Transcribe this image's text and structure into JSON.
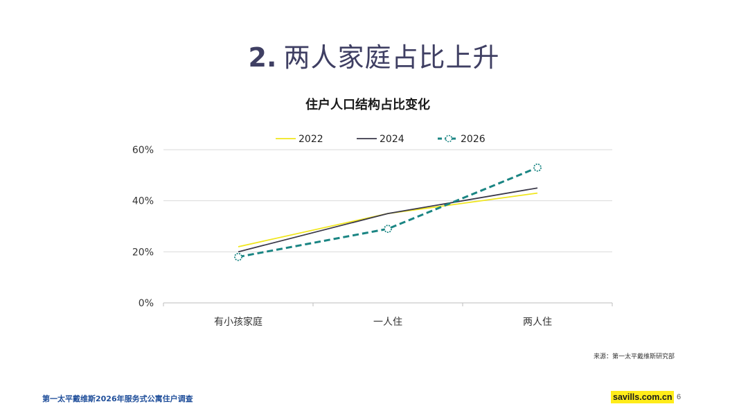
{
  "slide": {
    "title_number": "2.",
    "title_text": "两人家庭占比上升",
    "source": "来源：第一太平戴维斯研究部",
    "footer_left": "第一太平戴维斯2026年服务式公寓住户调查",
    "footer_brand": "savills.com.cn",
    "page_number": "6"
  },
  "chart_data": {
    "type": "line",
    "title": "住户人口结构占比变化",
    "categories": [
      "有小孩家庭",
      "一人住",
      "两人住"
    ],
    "ylim": [
      0,
      60
    ],
    "yticks": [
      0,
      20,
      40,
      60
    ],
    "ytick_labels": [
      "0%",
      "20%",
      "40%",
      "60%"
    ],
    "grid": true,
    "legend_position": "top-center",
    "series": [
      {
        "name": "2022",
        "values": [
          22,
          35,
          43
        ],
        "color": "#f0e61c",
        "style": "solid",
        "markers": false
      },
      {
        "name": "2024",
        "values": [
          20,
          35,
          45
        ],
        "color": "#3a3848",
        "style": "solid",
        "markers": false
      },
      {
        "name": "2026",
        "values": [
          18,
          29,
          53
        ],
        "color": "#1a8583",
        "style": "dashed",
        "markers": true
      }
    ]
  }
}
